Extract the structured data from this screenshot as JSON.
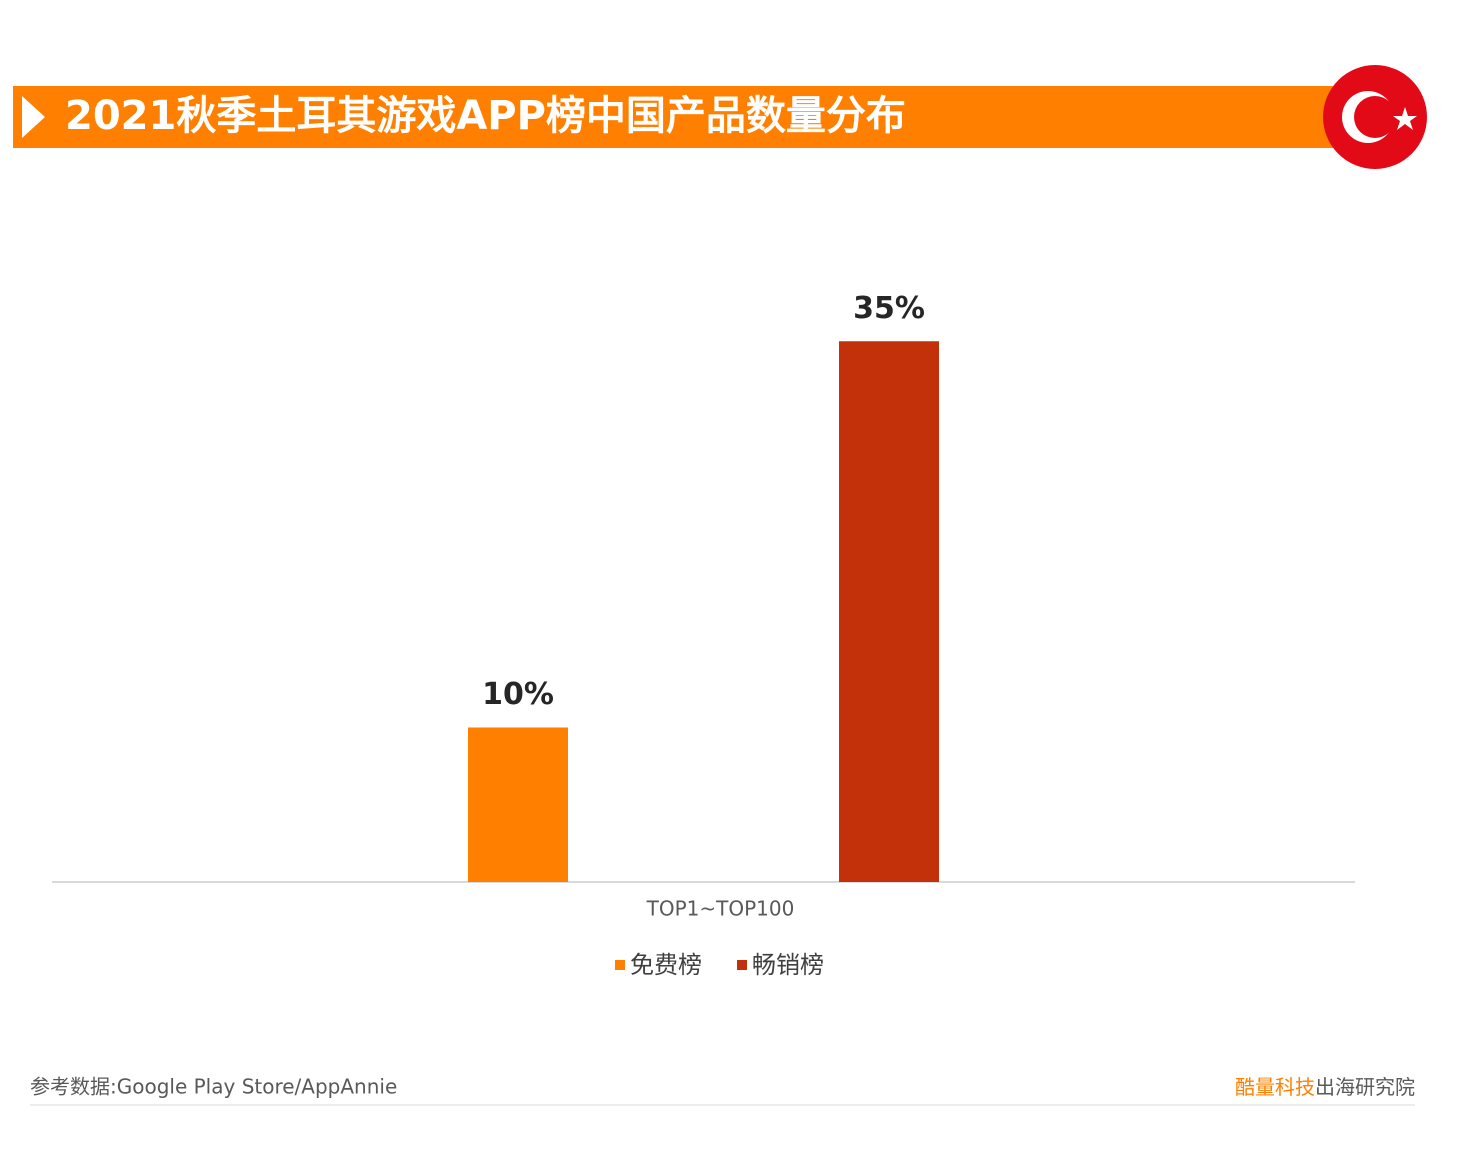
{
  "chart_data": {
    "type": "bar",
    "title": "2021秋季土耳其游戏APP榜中国产品数量分布",
    "categories": [
      "TOP1~TOP100"
    ],
    "series": [
      {
        "name": "免费榜",
        "color": "#ff7f00",
        "values": [
          10
        ],
        "value_labels": [
          "10%"
        ]
      },
      {
        "name": "畅销榜",
        "color": "#c3310a",
        "values": [
          35
        ],
        "value_labels": [
          "35%"
        ]
      }
    ],
    "ylim": [
      0,
      40
    ],
    "legend": "bottom"
  },
  "footer": {
    "source": "参考数据:Google Play Store/AppAnnie",
    "brand_highlight": "酷量科技",
    "brand_rest": "出海研究院"
  }
}
